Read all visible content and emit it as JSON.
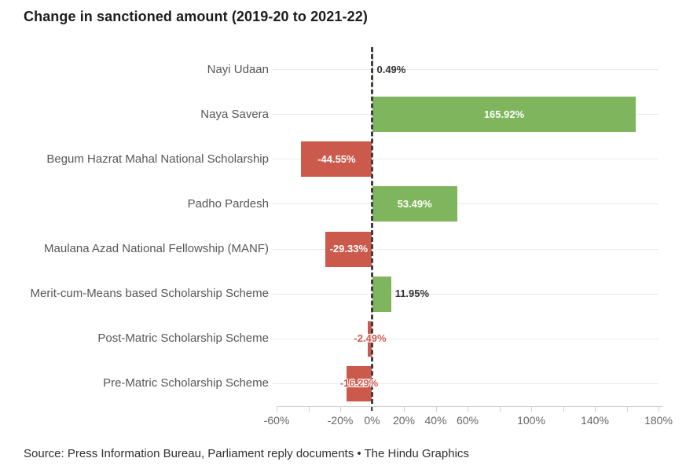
{
  "title": "Change in sanctioned amount (2019-20 to 2021-22)",
  "source": "Source: Press Information Bureau, Parliament reply documents • The Hindu Graphics",
  "chart_data": {
    "type": "bar",
    "orientation": "horizontal",
    "title": "Change in sanctioned amount (2019-20 to 2021-22)",
    "categories": [
      "Nayi Udaan",
      "Naya Savera",
      "Begum Hazrat Mahal National Scholarship",
      "Padho Pardesh",
      "Maulana Azad National Fellowship (MANF)",
      "Merit-cum-Means based Scholarship Scheme",
      "Post-Matric Scholarship Scheme",
      "Pre-Matric Scholarship Scheme"
    ],
    "values": [
      0.49,
      165.92,
      -44.55,
      53.49,
      -29.33,
      11.95,
      -2.49,
      -16.29
    ],
    "value_labels": [
      "0.49%",
      "165.92%",
      "-44.55%",
      "53.49%",
      "-29.33%",
      "11.95%",
      "-2.49%",
      "-16.29%"
    ],
    "xlabel": "",
    "ylabel": "",
    "xlim": [
      -60,
      180
    ],
    "x_tick_values": [
      -60,
      -20,
      0,
      20,
      40,
      60,
      100,
      140,
      180
    ],
    "x_tick_labels": [
      "-60%",
      "-20%",
      "0%",
      "20%",
      "40%",
      "60%",
      "100%",
      "140%",
      "180%"
    ],
    "x_minor_tick_step": 20,
    "grid": "horizontal-row-gridlines",
    "legend": "none",
    "zero_baseline": "dashed-vertical",
    "colors": {
      "positive": "#7FB55C",
      "negative": "#CB5A4C",
      "label_inside": "#ffffff",
      "label_outside": "#333333",
      "gridline": "#e9e9e9",
      "axis": "#cfcfcf",
      "zero_line": "#3f3f3f",
      "category_text": "#575757",
      "tick_text": "#666666",
      "title_text": "#1c1c1c"
    }
  }
}
